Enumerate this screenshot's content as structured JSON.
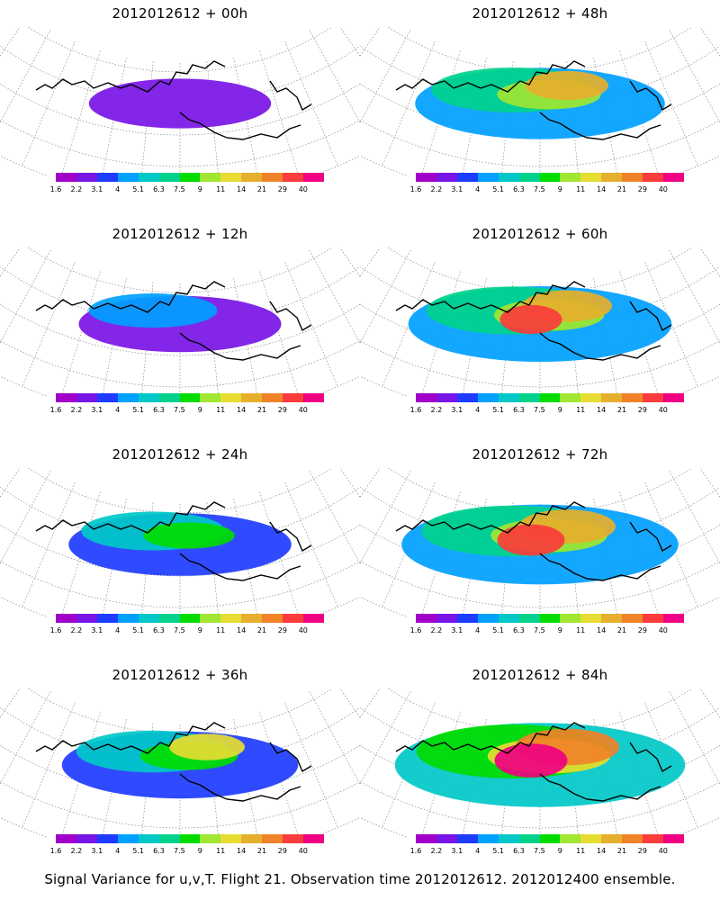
{
  "caption": "Signal Variance for u,v,T. Flight 21. Observation time 2012012612. 2012012400 ensemble.",
  "panels": [
    {
      "title": "2012012612 + 00h",
      "intensity": 0.15
    },
    {
      "title": "2012012612 + 48h",
      "intensity": 0.65
    },
    {
      "title": "2012012612 + 12h",
      "intensity": 0.3
    },
    {
      "title": "2012012612 + 60h",
      "intensity": 0.75
    },
    {
      "title": "2012012612 + 24h",
      "intensity": 0.45
    },
    {
      "title": "2012012612 + 72h",
      "intensity": 0.85
    },
    {
      "title": "2012012612 + 36h",
      "intensity": 0.55
    },
    {
      "title": "2012012612 + 84h",
      "intensity": 0.95
    }
  ],
  "colorbar": {
    "labels": [
      "1.6",
      "2.2",
      "3.1",
      "4",
      "5.1",
      "6.3",
      "7.5",
      "9",
      "11",
      "14",
      "21",
      "29",
      "40"
    ],
    "colors": [
      "#a000c8",
      "#7814e6",
      "#1e3cff",
      "#00a0ff",
      "#00c8c8",
      "#00d28c",
      "#00dc00",
      "#a0e632",
      "#e6dc32",
      "#e6af2d",
      "#f08228",
      "#fa3c3c",
      "#f00082"
    ]
  }
}
